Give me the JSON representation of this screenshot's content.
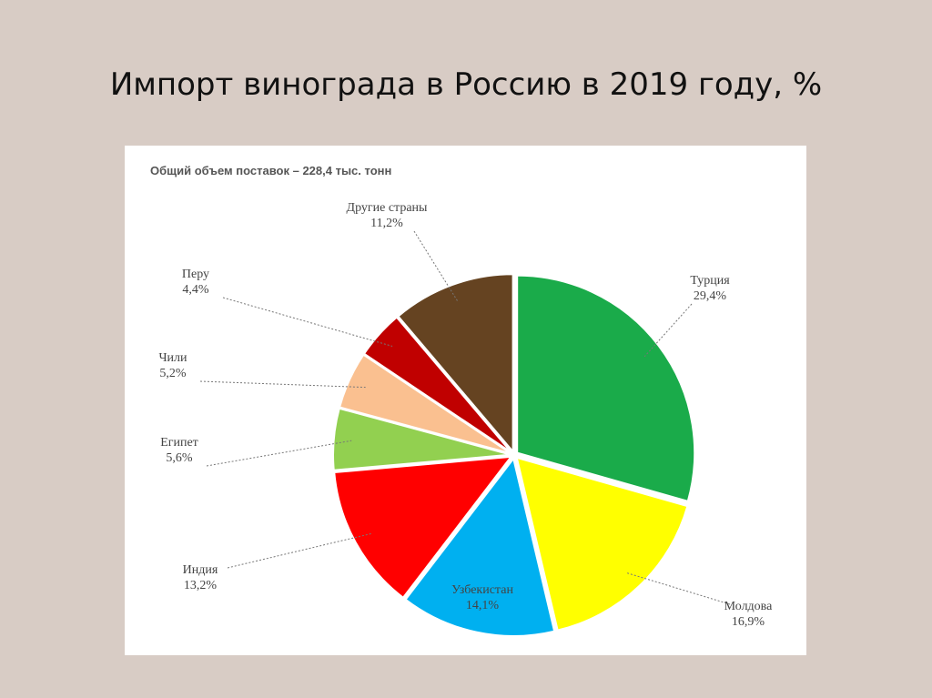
{
  "chart_data": {
    "type": "pie",
    "title": "Импорт винограда в Россию в 2019 году, %",
    "subtitle": "Общий объем поставок  – 228,4 тыс. тонн",
    "categories": [
      "Турция",
      "Молдова",
      "Узбекистан",
      "Индия",
      "Египет",
      "Чили",
      "Перу",
      "Другие страны"
    ],
    "values": [
      29.4,
      16.9,
      14.1,
      13.2,
      5.6,
      5.2,
      4.4,
      11.2
    ],
    "value_labels": [
      "29,4%",
      "16,9%",
      "14,1%",
      "13,2%",
      "5,6%",
      "5,2%",
      "4,4%",
      "11,2%"
    ],
    "colors": [
      "#1aab4a",
      "#ffff00",
      "#00b0f0",
      "#ff0000",
      "#92d050",
      "#fac090",
      "#c00000",
      "#654321"
    ]
  }
}
